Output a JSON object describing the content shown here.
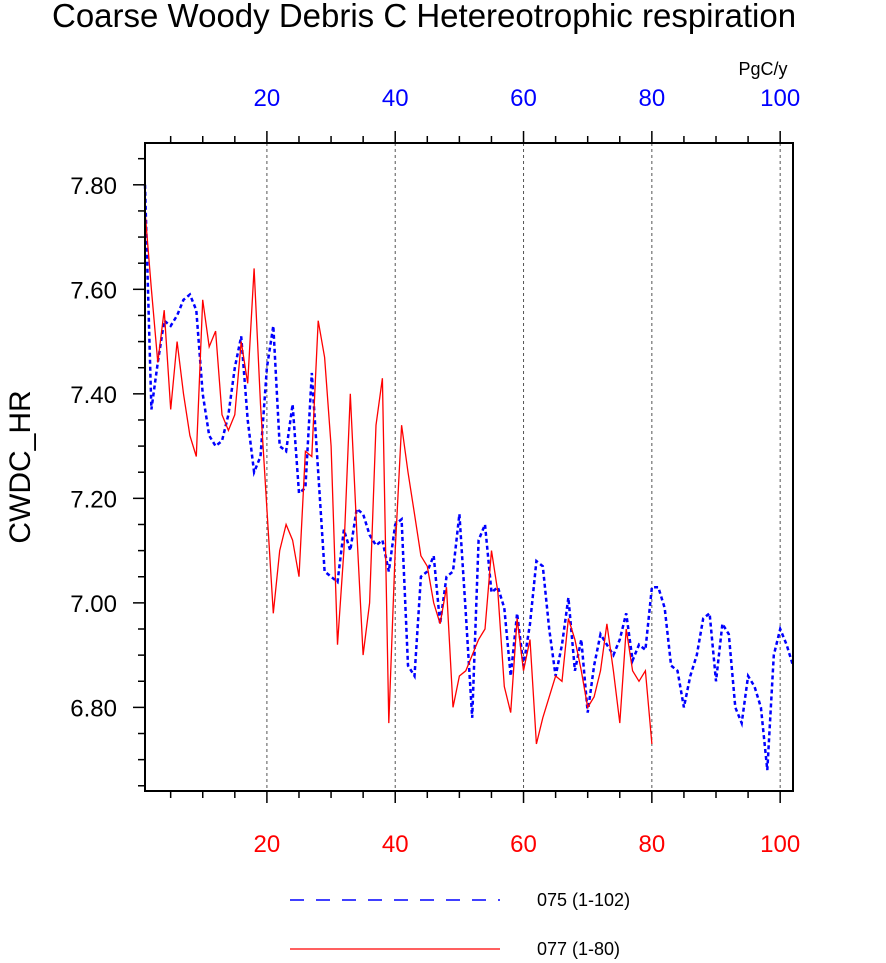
{
  "chart_data": {
    "type": "line",
    "title": "Coarse Woody Debris C Hetereotrophic respiration",
    "ylabel": "CWDC_HR",
    "units": "PgC/y",
    "xlim": [
      1,
      102
    ],
    "ylim": [
      6.64,
      7.88
    ],
    "top_axis": {
      "ticks": [
        20,
        40,
        60,
        80,
        100
      ],
      "labels": [
        "20",
        "40",
        "60",
        "80",
        "100"
      ],
      "color": "#0000ff"
    },
    "bottom_axis": {
      "ticks": [
        20,
        40,
        60,
        80,
        100
      ],
      "labels": [
        "20",
        "40",
        "60",
        "80",
        "100"
      ],
      "color": "#ff0000"
    },
    "y_ticks": [
      6.8,
      7.0,
      7.2,
      7.4,
      7.6,
      7.8
    ],
    "y_tick_labels": [
      "6.80",
      "7.00",
      "7.20",
      "7.40",
      "7.60",
      "7.80"
    ],
    "vertical_gridlines": [
      20,
      40,
      60,
      80,
      100
    ],
    "series": [
      {
        "name": "075 (1-102)",
        "color": "#0000ff",
        "style": "dashed",
        "x_start": 1,
        "values": [
          7.8,
          7.37,
          7.46,
          7.54,
          7.53,
          7.55,
          7.58,
          7.59,
          7.56,
          7.4,
          7.32,
          7.3,
          7.31,
          7.36,
          7.45,
          7.51,
          7.35,
          7.25,
          7.28,
          7.45,
          7.53,
          7.3,
          7.29,
          7.38,
          7.21,
          7.22,
          7.44,
          7.25,
          7.06,
          7.05,
          7.04,
          7.14,
          7.1,
          7.18,
          7.17,
          7.13,
          7.11,
          7.12,
          7.06,
          7.15,
          7.16,
          6.88,
          6.86,
          7.05,
          7.06,
          7.09,
          6.96,
          7.05,
          7.06,
          7.17,
          6.98,
          6.78,
          7.12,
          7.15,
          7.02,
          7.03,
          6.99,
          6.86,
          6.98,
          6.88,
          6.96,
          7.08,
          7.07,
          6.95,
          6.86,
          6.92,
          7.01,
          6.87,
          6.93,
          6.79,
          6.88,
          6.94,
          6.92,
          6.9,
          6.93,
          6.98,
          6.89,
          6.92,
          6.91,
          7.03,
          7.03,
          6.99,
          6.88,
          6.87,
          6.8,
          6.86,
          6.9,
          6.97,
          6.98,
          6.85,
          6.96,
          6.94,
          6.8,
          6.77,
          6.86,
          6.84,
          6.8,
          6.68,
          6.9,
          6.95,
          6.92,
          6.88
        ]
      },
      {
        "name": "077 (1-80)",
        "color": "#ff0000",
        "style": "solid",
        "x_start": 1,
        "values": [
          7.75,
          7.6,
          7.46,
          7.56,
          7.37,
          7.5,
          7.4,
          7.32,
          7.28,
          7.58,
          7.49,
          7.52,
          7.36,
          7.33,
          7.36,
          7.5,
          7.42,
          7.64,
          7.38,
          7.18,
          6.98,
          7.1,
          7.15,
          7.12,
          7.05,
          7.29,
          7.28,
          7.54,
          7.47,
          7.3,
          6.92,
          7.1,
          7.4,
          7.14,
          6.9,
          7.0,
          7.34,
          7.43,
          6.77,
          7.1,
          7.34,
          7.25,
          7.17,
          7.09,
          7.07,
          7.0,
          6.96,
          7.03,
          6.8,
          6.86,
          6.87,
          6.9,
          6.93,
          6.95,
          7.1,
          7.02,
          6.84,
          6.79,
          6.97,
          6.87,
          6.93,
          6.73,
          6.78,
          6.82,
          6.86,
          6.85,
          6.97,
          6.93,
          6.87,
          6.8,
          6.82,
          6.87,
          6.96,
          6.87,
          6.77,
          6.95,
          6.87,
          6.85,
          6.87,
          6.73
        ]
      }
    ]
  }
}
